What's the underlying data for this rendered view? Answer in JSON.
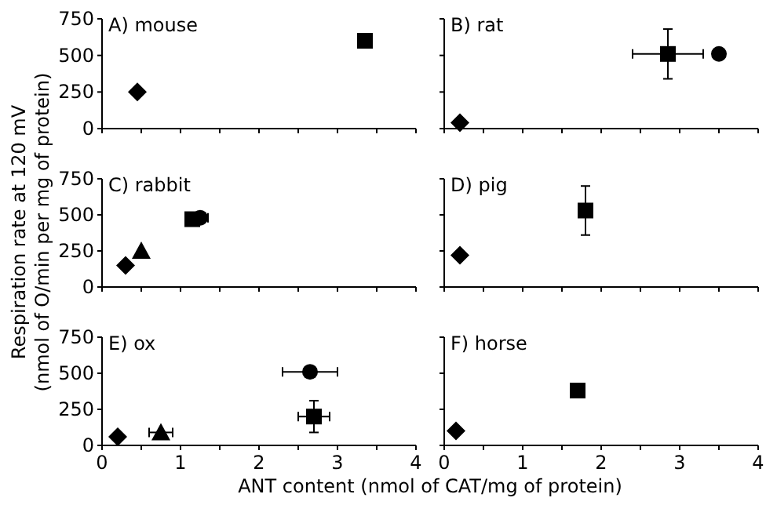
{
  "chart_data": [
    {
      "type": "scatter",
      "title": "A) mouse",
      "xlim": [
        0,
        4
      ],
      "ylim": [
        0,
        750
      ],
      "xticks": [
        0,
        {
          "value": 0.5,
          "label": null
        },
        1,
        {
          "value": 1.5,
          "label": null
        },
        2,
        {
          "value": 2.5,
          "label": null
        },
        3,
        {
          "value": 3.5,
          "label": null
        },
        4
      ],
      "yticks": [
        0,
        250,
        500,
        750
      ],
      "tick_labels": "y",
      "series": [
        {
          "color": "#000000",
          "marker": "diamond",
          "x": [
            0.45
          ],
          "values": [
            250
          ]
        },
        {
          "color": "#000000",
          "marker": "square",
          "x": [
            3.35
          ],
          "values": [
            600
          ]
        }
      ]
    },
    {
      "type": "scatter",
      "title": "B) rat",
      "xlim": [
        0,
        4
      ],
      "ylim": [
        0,
        750
      ],
      "xticks": [
        0,
        {
          "value": 0.5,
          "label": null
        },
        1,
        {
          "value": 1.5,
          "label": null
        },
        2,
        {
          "value": 2.5,
          "label": null
        },
        3,
        {
          "value": 3.5,
          "label": null
        },
        4
      ],
      "yticks": [
        0,
        250,
        500,
        750
      ],
      "tick_labels": false,
      "series": [
        {
          "color": "#000000",
          "marker": "diamond",
          "x": [
            0.2
          ],
          "values": [
            40
          ]
        },
        {
          "color": "#000000",
          "marker": "square",
          "x": [
            2.85
          ],
          "values": [
            510
          ],
          "errors": [
            170
          ],
          "xerrors": [
            0.45
          ]
        },
        {
          "color": "#000000",
          "marker": "circle",
          "x": [
            3.5
          ],
          "values": [
            510
          ]
        }
      ]
    },
    {
      "type": "scatter",
      "title": "C) rabbit",
      "ylabel": "Respiration rate at 120 mV\n(nmol of O/min per mg of protein)",
      "xlim": [
        0,
        4
      ],
      "ylim": [
        0,
        750
      ],
      "xticks": [
        0,
        {
          "value": 0.5,
          "label": null
        },
        1,
        {
          "value": 1.5,
          "label": null
        },
        2,
        {
          "value": 2.5,
          "label": null
        },
        3,
        {
          "value": 3.5,
          "label": null
        },
        4
      ],
      "yticks": [
        0,
        250,
        500,
        750
      ],
      "tick_labels": "y",
      "series": [
        {
          "color": "#000000",
          "marker": "diamond",
          "x": [
            0.3
          ],
          "values": [
            150
          ]
        },
        {
          "color": "#000000",
          "marker": "triangle",
          "x": [
            0.5
          ],
          "values": [
            250
          ]
        },
        {
          "color": "#000000",
          "marker": "square",
          "x": [
            1.15
          ],
          "values": [
            470
          ]
        },
        {
          "color": "#000000",
          "marker": "circle",
          "x": [
            1.25
          ],
          "values": [
            480
          ],
          "xerrors": [
            0.1
          ]
        }
      ]
    },
    {
      "type": "scatter",
      "title": "D) pig",
      "xlim": [
        0,
        4
      ],
      "ylim": [
        0,
        750
      ],
      "xticks": [
        0,
        {
          "value": 0.5,
          "label": null
        },
        1,
        {
          "value": 1.5,
          "label": null
        },
        2,
        {
          "value": 2.5,
          "label": null
        },
        3,
        {
          "value": 3.5,
          "label": null
        },
        4
      ],
      "yticks": [
        0,
        250,
        500,
        750
      ],
      "tick_labels": false,
      "series": [
        {
          "color": "#000000",
          "marker": "diamond",
          "x": [
            0.2
          ],
          "values": [
            220
          ]
        },
        {
          "color": "#000000",
          "marker": "square",
          "x": [
            1.8
          ],
          "values": [
            530
          ],
          "errors": [
            170
          ]
        }
      ]
    },
    {
      "type": "scatter",
      "title": "E) ox",
      "xlabel": "ANT content (nmol of CAT/mg of protein)",
      "xlim": [
        0,
        4
      ],
      "ylim": [
        0,
        750
      ],
      "xticks": [
        0,
        {
          "value": 0.5,
          "label": null
        },
        1,
        {
          "value": 1.5,
          "label": null
        },
        2,
        {
          "value": 2.5,
          "label": null
        },
        3,
        {
          "value": 3.5,
          "label": null
        },
        4
      ],
      "yticks": [
        0,
        250,
        500,
        750
      ],
      "series": [
        {
          "color": "#000000",
          "marker": "diamond",
          "x": [
            0.2
          ],
          "values": [
            60
          ]
        },
        {
          "color": "#000000",
          "marker": "triangle",
          "x": [
            0.75
          ],
          "values": [
            90
          ],
          "xerrors": [
            0.15
          ]
        },
        {
          "color": "#000000",
          "marker": "circle",
          "x": [
            2.65
          ],
          "values": [
            510
          ],
          "xerrors": [
            0.35
          ]
        },
        {
          "color": "#000000",
          "marker": "square",
          "x": [
            2.7
          ],
          "values": [
            200
          ],
          "errors": [
            110
          ],
          "xerrors": [
            0.2
          ]
        }
      ]
    },
    {
      "type": "scatter",
      "title": "F) horse",
      "xlim": [
        0,
        4
      ],
      "ylim": [
        0,
        750
      ],
      "xticks": [
        0,
        {
          "value": 0.5,
          "label": null
        },
        1,
        {
          "value": 1.5,
          "label": null
        },
        2,
        {
          "value": 2.5,
          "label": null
        },
        3,
        {
          "value": 3.5,
          "label": null
        },
        4
      ],
      "yticks": [
        0,
        250,
        500,
        750
      ],
      "tick_labels": "x",
      "series": [
        {
          "color": "#000000",
          "marker": "diamond",
          "x": [
            0.15
          ],
          "values": [
            100
          ]
        },
        {
          "color": "#000000",
          "marker": "square",
          "x": [
            1.7
          ],
          "values": [
            380
          ]
        }
      ]
    }
  ]
}
